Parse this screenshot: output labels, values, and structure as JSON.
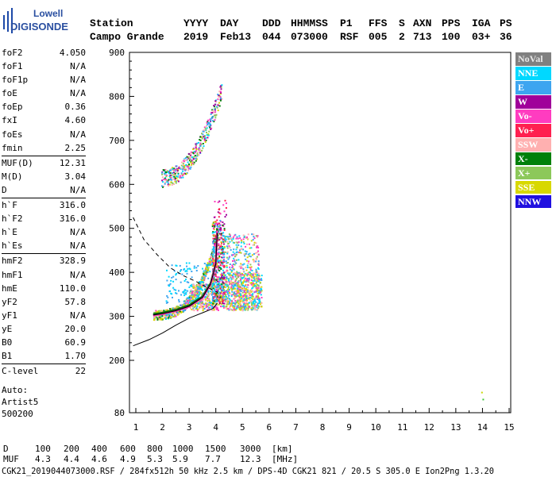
{
  "logo": {
    "line1": "Lowell",
    "line2": "DIGISONDE"
  },
  "header": {
    "columns": [
      "Station",
      "YYYY",
      "DAY",
      "DDD",
      "HHMMSS",
      "P1",
      "FFS",
      "S",
      "AXN",
      "PPS",
      "IGA",
      "PS"
    ],
    "values": [
      "Campo Grande",
      "2019",
      "Feb13",
      "044",
      "073000",
      "RSF",
      "005",
      "2",
      "713",
      "100",
      "03+",
      "36"
    ]
  },
  "params": {
    "group1": [
      {
        "label": "foF2",
        "value": "4.050"
      },
      {
        "label": "foF1",
        "value": "N/A"
      },
      {
        "label": "foF1p",
        "value": "N/A"
      },
      {
        "label": "foE",
        "value": "N/A"
      },
      {
        "label": "foEp",
        "value": "0.36"
      },
      {
        "label": "fxI",
        "value": "4.60"
      },
      {
        "label": "foEs",
        "value": "N/A"
      },
      {
        "label": "fmin",
        "value": "2.25"
      }
    ],
    "group2": [
      {
        "label": "MUF(D)",
        "value": "12.31"
      },
      {
        "label": "M(D)",
        "value": "3.04"
      },
      {
        "label": "D",
        "value": "N/A"
      }
    ],
    "group3": [
      {
        "label": "h`F",
        "value": "316.0"
      },
      {
        "label": "h`F2",
        "value": "316.0"
      },
      {
        "label": "h`E",
        "value": "N/A"
      },
      {
        "label": "h`Es",
        "value": "N/A"
      }
    ],
    "group4": [
      {
        "label": "hmF2",
        "value": "328.9"
      },
      {
        "label": "hmF1",
        "value": "N/A"
      },
      {
        "label": "hmE",
        "value": "110.0"
      },
      {
        "label": "yF2",
        "value": "57.8"
      },
      {
        "label": "yF1",
        "value": "N/A"
      },
      {
        "label": "yE",
        "value": "20.0"
      },
      {
        "label": "B0",
        "value": "60.9"
      },
      {
        "label": "B1",
        "value": "1.70"
      }
    ],
    "group5": [
      {
        "label": "C-level",
        "value": "22"
      }
    ]
  },
  "auto": {
    "line1": "Auto:",
    "line2": "Artist5",
    "line3": "500200"
  },
  "legend": [
    {
      "label": "NoVal",
      "color": "#808080",
      "text_color": "#e8e8e8"
    },
    {
      "label": "NNE",
      "color": "#00d8ff",
      "text_color": "#ffffff"
    },
    {
      "label": "E",
      "color": "#3da5f0",
      "text_color": "#ffffff"
    },
    {
      "label": "W",
      "color": "#a0009a",
      "text_color": "#ffffff"
    },
    {
      "label": "Vo-",
      "color": "#ff3cc0",
      "text_color": "#ffffff"
    },
    {
      "label": "Vo+",
      "color": "#ff2050",
      "text_color": "#ffffff"
    },
    {
      "label": "SSW",
      "color": "#ffb0b0",
      "text_color": "#ffffff"
    },
    {
      "label": "X-",
      "color": "#00800a",
      "text_color": "#ffffff"
    },
    {
      "label": "X+",
      "color": "#8cc85a",
      "text_color": "#ffffff"
    },
    {
      "label": "SSE",
      "color": "#d8d800",
      "text_color": "#ffffff"
    },
    {
      "label": "NNW",
      "color": "#2010e0",
      "text_color": "#ffffff"
    }
  ],
  "footer": {
    "d_label": "D",
    "d_values": [
      "100",
      "200",
      "400",
      "600",
      "800",
      "1000",
      "1500",
      "3000",
      "[km]"
    ],
    "muf_label": "MUF",
    "muf_values": [
      "4.3",
      "4.4",
      "4.6",
      "4.9",
      "5.3",
      "5.9",
      "7.7",
      "12.3",
      "[MHz]"
    ],
    "file_line": "CGK21_2019044073000.RSF / 284fx512h 50 kHz 2.5 km / DPS-4D CGK21 821 / 20.5 S 305.0 E Ion2Png 1.3.20"
  },
  "chart_data": {
    "type": "scatter",
    "x_ticks": [
      1,
      2,
      3,
      4,
      5,
      6,
      7,
      8,
      9,
      10,
      11,
      12,
      13,
      14,
      15
    ],
    "y_ticks": [
      80,
      200,
      300,
      400,
      500,
      600,
      700,
      800,
      900
    ],
    "xlim": [
      0.9,
      15.4
    ],
    "ylim_major": [
      200,
      900
    ],
    "grid": false,
    "series": [
      {
        "name": "X-",
        "type": "line",
        "color": "#006a00",
        "x": [
          1.65,
          2.0,
          2.5,
          3.0,
          3.5,
          3.8,
          4.0,
          4.05
        ],
        "y": [
          305,
          308,
          315,
          325,
          345,
          375,
          420,
          500
        ]
      },
      {
        "name": "Vo-",
        "type": "line",
        "color": "#ff3cc0",
        "x": [
          1.65,
          2.0,
          2.5,
          3.0,
          3.5,
          3.8,
          4.0,
          4.05
        ],
        "y": [
          302,
          305,
          312,
          322,
          342,
          372,
          418,
          495
        ]
      },
      {
        "type": "line",
        "color": "#000000",
        "x": [
          1.65,
          2.0,
          2.5,
          3.0,
          3.5,
          3.8,
          4.0,
          4.05
        ],
        "y": [
          303,
          306,
          313,
          323,
          343,
          373,
          419,
          490
        ]
      },
      {
        "type": "line",
        "color": "#000000",
        "x": [
          0.9,
          1.5,
          2.0,
          2.5,
          3.0,
          3.5,
          3.9,
          4.05
        ],
        "y": [
          233,
          247,
          262,
          280,
          296,
          308,
          318,
          330
        ]
      },
      {
        "type": "line",
        "color": "#000000",
        "dashed": true,
        "x": [
          0.9,
          1.3,
          1.8,
          2.3,
          2.8,
          3.3,
          3.7,
          4.05
        ],
        "y": [
          525,
          475,
          440,
          410,
          392,
          378,
          365,
          355
        ]
      },
      {
        "type": "scatter",
        "x": [
          13.95,
          14.0
        ],
        "y": [
          128,
          112
        ]
      }
    ]
  }
}
